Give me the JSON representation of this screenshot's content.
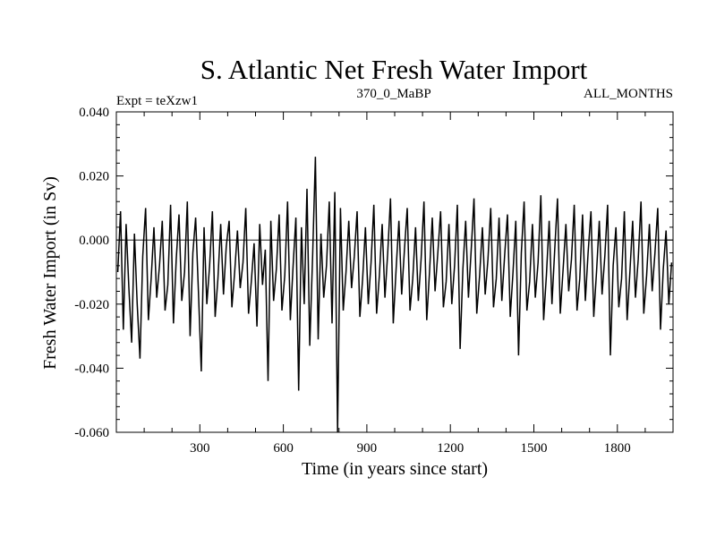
{
  "chart_data": {
    "type": "line",
    "title": "S. Atlantic Net Fresh Water Import",
    "subtitle_left": "Expt = teXzw1",
    "subtitle_center": "370_0_MaBP",
    "subtitle_right": "ALL_MONTHS",
    "xlabel": "Time (in years since start)",
    "ylabel": "Fresh Water Import (in Sv)",
    "xlim": [
      0,
      2000
    ],
    "ylim": [
      -0.06,
      0.04
    ],
    "xticks": [
      {
        "value": 300,
        "label": "300"
      },
      {
        "value": 600,
        "label": "600"
      },
      {
        "value": 900,
        "label": "900"
      },
      {
        "value": 1200,
        "label": "1200"
      },
      {
        "value": 1500,
        "label": "1500"
      },
      {
        "value": 1800,
        "label": "1800"
      }
    ],
    "yticks": [
      {
        "value": 0.04,
        "label": "0.040"
      },
      {
        "value": 0.02,
        "label": "0.020"
      },
      {
        "value": 0.0,
        "label": "0.000"
      },
      {
        "value": -0.02,
        "label": "-0.020"
      },
      {
        "value": -0.04,
        "label": "-0.040"
      },
      {
        "value": -0.06,
        "label": "-0.060"
      }
    ],
    "reference_line": 0.0,
    "series": [
      {
        "name": "Net Fresh Water Import",
        "sampling": "one value every 10 years (estimated envelope of annual series)",
        "x_start": 5,
        "x_step": 10,
        "values": [
          -0.01,
          0.009,
          -0.028,
          0.005,
          -0.015,
          -0.032,
          0.002,
          -0.02,
          -0.037,
          -0.005,
          0.01,
          -0.025,
          -0.012,
          0.004,
          -0.018,
          -0.008,
          0.006,
          -0.022,
          -0.014,
          0.011,
          -0.026,
          -0.006,
          0.008,
          -0.019,
          -0.01,
          0.012,
          -0.03,
          -0.004,
          0.007,
          -0.016,
          -0.041,
          0.004,
          -0.02,
          -0.008,
          0.009,
          -0.024,
          -0.012,
          0.005,
          -0.017,
          -0.002,
          0.006,
          -0.021,
          -0.01,
          0.003,
          -0.015,
          -0.007,
          0.01,
          -0.023,
          -0.013,
          -0.001,
          -0.027,
          0.005,
          -0.014,
          -0.003,
          -0.044,
          0.006,
          -0.019,
          -0.009,
          0.008,
          -0.022,
          -0.011,
          0.012,
          -0.025,
          -0.008,
          0.007,
          -0.047,
          0.004,
          -0.02,
          0.016,
          -0.033,
          -0.005,
          0.026,
          -0.031,
          0.002,
          -0.018,
          -0.008,
          0.012,
          -0.026,
          0.015,
          -0.06,
          0.01,
          -0.022,
          -0.01,
          0.006,
          -0.015,
          -0.005,
          0.009,
          -0.024,
          -0.012,
          0.004,
          -0.02,
          -0.007,
          0.011,
          -0.023,
          -0.011,
          0.005,
          -0.018,
          -0.004,
          0.013,
          -0.026,
          -0.009,
          0.006,
          -0.017,
          -0.003,
          0.01,
          -0.022,
          -0.012,
          0.004,
          -0.019,
          -0.006,
          0.012,
          -0.025,
          -0.01,
          0.007,
          -0.016,
          -0.004,
          0.009,
          -0.021,
          -0.013,
          0.005,
          -0.02,
          -0.008,
          0.011,
          -0.034,
          -0.009,
          0.006,
          -0.018,
          -0.003,
          0.013,
          -0.023,
          -0.011,
          0.004,
          -0.017,
          -0.006,
          0.01,
          -0.021,
          -0.012,
          0.007,
          -0.019,
          -0.005,
          0.008,
          -0.024,
          -0.01,
          0.006,
          -0.036,
          -0.004,
          0.012,
          -0.022,
          -0.013,
          0.005,
          -0.018,
          -0.007,
          0.014,
          -0.025,
          -0.011,
          0.006,
          -0.02,
          -0.003,
          0.013,
          -0.023,
          -0.009,
          0.005,
          -0.016,
          -0.006,
          0.011,
          -0.022,
          -0.012,
          0.008,
          -0.019,
          -0.004,
          0.009,
          -0.024,
          -0.01,
          0.006,
          -0.017,
          -0.005,
          0.011,
          -0.036,
          -0.008,
          0.004,
          -0.021,
          -0.012,
          0.009,
          -0.025,
          -0.01,
          0.006,
          -0.018,
          -0.006,
          0.012,
          -0.023,
          -0.011,
          0.005,
          -0.016,
          -0.004,
          0.01,
          -0.028,
          -0.009,
          0.003,
          -0.02,
          -0.007
        ]
      }
    ]
  }
}
